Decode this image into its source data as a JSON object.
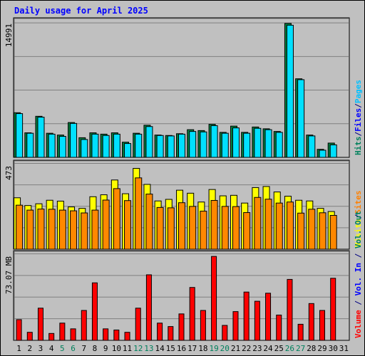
{
  "chart_data": {
    "type": "bar",
    "title": "Daily usage for April 2025",
    "categories": [
      "1",
      "2",
      "3",
      "4",
      "5",
      "6",
      "7",
      "8",
      "9",
      "10",
      "11",
      "12",
      "13",
      "14",
      "15",
      "16",
      "17",
      "18",
      "19",
      "20",
      "21",
      "22",
      "23",
      "24",
      "25",
      "26",
      "27",
      "28",
      "29",
      "30",
      "31"
    ],
    "weekend_categories": [
      "5",
      "6",
      "12",
      "13",
      "19",
      "20",
      "26",
      "27"
    ],
    "panels": [
      {
        "id": "hits-files",
        "ymax": 14991,
        "ymax_label": "14991",
        "legend": [
          {
            "text": "Hits",
            "color": "#00805c"
          },
          {
            "text": "/",
            "color": "#000080"
          },
          {
            "text": "Files",
            "color": "#0000ff"
          },
          {
            "text": "/",
            "color": "#000080"
          },
          {
            "text": "Pages",
            "color": "#00c0ff"
          }
        ],
        "series": [
          {
            "name": "Hits",
            "color": "#008040",
            "values": [
              5000,
              2750,
              4600,
              2700,
              2500,
              3900,
              2200,
              2750,
              2600,
              2750,
              1700,
              2700,
              3600,
              2500,
              2450,
              2650,
              3100,
              3000,
              3700,
              2800,
              3500,
              2800,
              3400,
              3200,
              2900,
              15000,
              8800,
              2500,
              900,
              1600,
              null
            ]
          },
          {
            "name": "Files",
            "color": "#00e0ff",
            "values": [
              4900,
              2700,
              4500,
              2600,
              2350,
              3800,
              2000,
              2600,
              2450,
              2600,
              1550,
              2600,
              3450,
              2450,
              2400,
              2600,
              2900,
              2850,
              3550,
              2700,
              3300,
              2700,
              3250,
              3100,
              2800,
              14800,
              8700,
              2400,
              800,
              1400,
              null
            ]
          }
        ]
      },
      {
        "id": "visits-sites",
        "ymax": 473,
        "ymax_label": "473",
        "legend": [
          {
            "text": "Visits",
            "color": "#ffff00"
          },
          {
            "text": "/",
            "color": "#000080"
          },
          {
            "text": "Sites",
            "color": "#ff8000"
          }
        ],
        "series": [
          {
            "name": "Visits",
            "color": "#ffff00",
            "values": [
              292,
              248,
              258,
              278,
              273,
              240,
              232,
              298,
              309,
              393,
              315,
              459,
              368,
              274,
              283,
              335,
              318,
              268,
              339,
              303,
              306,
              262,
              350,
              356,
              325,
              301,
              278,
              274,
              232,
              214,
              null
            ]
          },
          {
            "name": "Sites",
            "color": "#ff8800",
            "values": [
              250,
              222,
              228,
              227,
              222,
              218,
              206,
              222,
              279,
              344,
              276,
              405,
              313,
              237,
              235,
              264,
              243,
              216,
              277,
              243,
              242,
              208,
              294,
              284,
              262,
              268,
              205,
              227,
              207,
              192,
              null
            ]
          }
        ]
      },
      {
        "id": "volume",
        "ymax": 73.07,
        "ymax_label": "73.07 MB",
        "legend": [
          {
            "text": "Volume",
            "color": "#ff0000"
          },
          {
            "text": " / ",
            "color": "#000080"
          },
          {
            "text": "Vol. In",
            "color": "#0000ff"
          },
          {
            "text": " / ",
            "color": "#000080"
          },
          {
            "text": "Vol. Out",
            "color": "#00805c"
          }
        ],
        "series": [
          {
            "name": "Volume",
            "color": "#ff0000",
            "values": [
              18,
              7,
              28,
              6,
              15,
              10,
              26,
              50,
              10,
              9,
              7,
              28,
              57,
              15,
              12,
              23,
              46,
              26,
              73,
              13,
              25,
              42,
              34,
              41,
              22,
              53,
              14,
              32,
              26,
              54,
              null
            ]
          }
        ]
      }
    ]
  }
}
